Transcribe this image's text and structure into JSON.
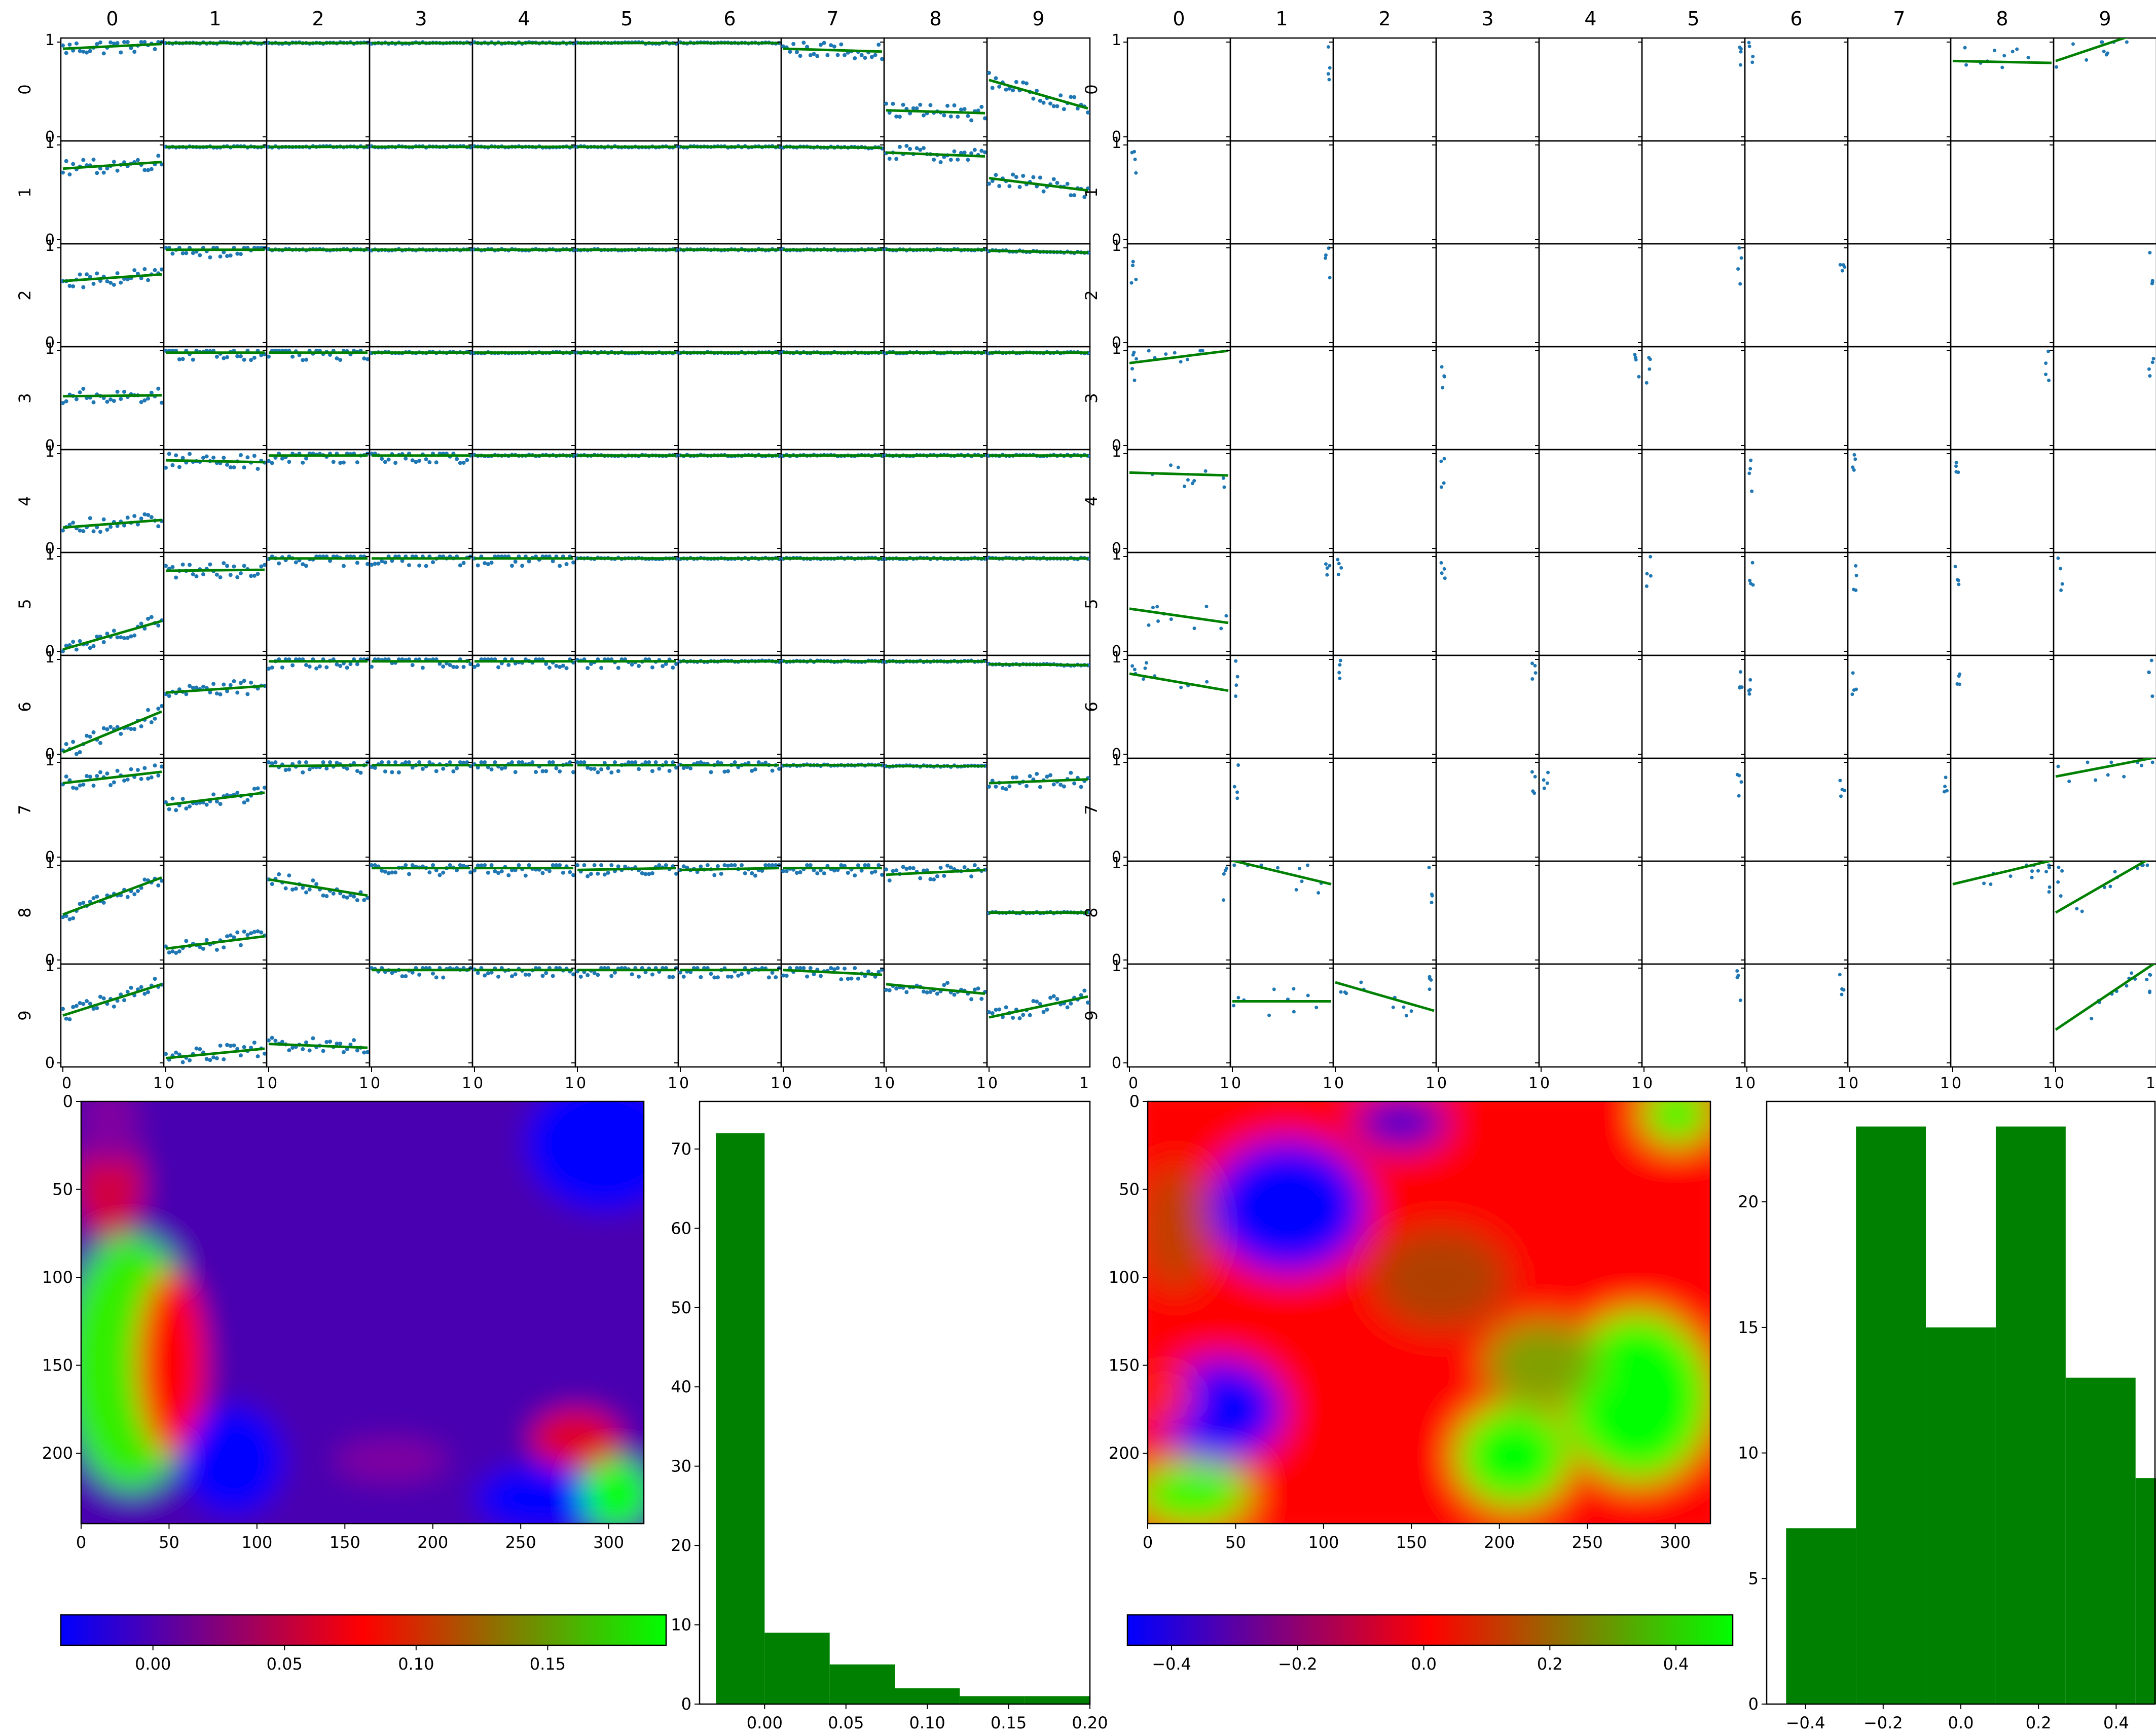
{
  "chart_data": [
    {
      "id": "left-grid",
      "type": "scatter-matrix",
      "description_rows": [
        "0",
        "1",
        "2",
        "3",
        "4",
        "5",
        "6",
        "7",
        "8",
        "9"
      ],
      "columns": [
        "0",
        "1",
        "2",
        "3",
        "4",
        "5",
        "6",
        "7",
        "8",
        "9"
      ],
      "rows": [
        "0",
        "1",
        "2",
        "3",
        "4",
        "5",
        "6",
        "7",
        "8",
        "9"
      ],
      "y_ticks": [
        "0",
        "1"
      ],
      "x_ticks": [
        "0",
        "1"
      ],
      "ylim": [
        0,
        1
      ],
      "xlim": [
        0,
        1
      ],
      "cells": [
        [
          [
            0.93,
            0.98
          ],
          [
            0.99,
            0.99
          ],
          [
            0.99,
            0.99
          ],
          [
            0.99,
            0.99
          ],
          [
            0.99,
            0.99
          ],
          [
            0.99,
            0.99
          ],
          [
            0.99,
            0.99
          ],
          [
            0.93,
            0.9
          ],
          [
            0.28,
            0.25
          ],
          [
            0.6,
            0.3
          ]
        ],
        [
          [
            0.75,
            0.82
          ],
          [
            0.98,
            0.98
          ],
          [
            0.98,
            0.98
          ],
          [
            0.98,
            0.98
          ],
          [
            0.98,
            0.98
          ],
          [
            0.98,
            0.98
          ],
          [
            0.98,
            0.98
          ],
          [
            0.98,
            0.97
          ],
          [
            0.92,
            0.88
          ],
          [
            0.65,
            0.52
          ]
        ],
        [
          [
            0.65,
            0.72
          ],
          [
            0.98,
            0.98
          ],
          [
            0.98,
            0.98
          ],
          [
            0.98,
            0.98
          ],
          [
            0.98,
            0.98
          ],
          [
            0.98,
            0.98
          ],
          [
            0.98,
            0.98
          ],
          [
            0.98,
            0.98
          ],
          [
            0.98,
            0.98
          ],
          [
            0.97,
            0.95
          ]
        ],
        [
          [
            0.52,
            0.53
          ],
          [
            0.98,
            0.98
          ],
          [
            0.98,
            0.98
          ],
          [
            0.98,
            0.98
          ],
          [
            0.98,
            0.98
          ],
          [
            0.98,
            0.98
          ],
          [
            0.98,
            0.98
          ],
          [
            0.98,
            0.98
          ],
          [
            0.98,
            0.98
          ],
          [
            0.98,
            0.98
          ]
        ],
        [
          [
            0.22,
            0.3
          ],
          [
            0.93,
            0.91
          ],
          [
            0.98,
            0.98
          ],
          [
            0.98,
            0.98
          ],
          [
            0.98,
            0.98
          ],
          [
            0.98,
            0.98
          ],
          [
            0.98,
            0.98
          ],
          [
            0.98,
            0.98
          ],
          [
            0.98,
            0.98
          ],
          [
            0.98,
            0.98
          ]
        ],
        [
          [
            0.02,
            0.32
          ],
          [
            0.85,
            0.86
          ],
          [
            0.98,
            0.98
          ],
          [
            0.98,
            0.98
          ],
          [
            0.98,
            0.98
          ],
          [
            0.98,
            0.98
          ],
          [
            0.98,
            0.98
          ],
          [
            0.98,
            0.98
          ],
          [
            0.98,
            0.98
          ],
          [
            0.98,
            0.98
          ]
        ],
        [
          [
            0.02,
            0.45
          ],
          [
            0.65,
            0.72
          ],
          [
            0.98,
            0.98
          ],
          [
            0.98,
            0.98
          ],
          [
            0.98,
            0.98
          ],
          [
            0.98,
            0.98
          ],
          [
            0.98,
            0.98
          ],
          [
            0.98,
            0.98
          ],
          [
            0.98,
            0.98
          ],
          [
            0.95,
            0.94
          ]
        ],
        [
          [
            0.78,
            0.9
          ],
          [
            0.55,
            0.68
          ],
          [
            0.96,
            0.97
          ],
          [
            0.97,
            0.97
          ],
          [
            0.97,
            0.97
          ],
          [
            0.97,
            0.97
          ],
          [
            0.97,
            0.97
          ],
          [
            0.97,
            0.97
          ],
          [
            0.96,
            0.96
          ],
          [
            0.78,
            0.82
          ]
        ],
        [
          [
            0.48,
            0.87
          ],
          [
            0.12,
            0.25
          ],
          [
            0.85,
            0.68
          ],
          [
            0.97,
            0.97
          ],
          [
            0.97,
            0.97
          ],
          [
            0.95,
            0.97
          ],
          [
            0.95,
            0.97
          ],
          [
            0.97,
            0.97
          ],
          [
            0.9,
            0.95
          ],
          [
            0.5,
            0.5
          ]
        ],
        [
          [
            0.5,
            0.83
          ],
          [
            0.05,
            0.15
          ],
          [
            0.2,
            0.16
          ],
          [
            0.98,
            0.98
          ],
          [
            0.98,
            0.98
          ],
          [
            0.98,
            0.98
          ],
          [
            0.98,
            0.98
          ],
          [
            0.98,
            0.93
          ],
          [
            0.83,
            0.73
          ],
          [
            0.48,
            0.7
          ]
        ]
      ]
    },
    {
      "id": "right-grid",
      "type": "scatter-matrix",
      "columns": [
        "0",
        "1",
        "2",
        "3",
        "4",
        "5",
        "6",
        "7",
        "8",
        "9"
      ],
      "rows": [
        "0",
        "1",
        "2",
        "3",
        "4",
        "5",
        "6",
        "7",
        "8",
        "9"
      ],
      "y_ticks": [
        "0",
        "1"
      ],
      "x_ticks": [
        "0",
        "1"
      ],
      "ylim": [
        0,
        1
      ],
      "xlim": [
        0,
        1
      ],
      "fit_lines": [
        {
          "row": 0,
          "col": 8,
          "y": [
            0.8,
            0.78
          ]
        },
        {
          "row": 0,
          "col": 9,
          "y": [
            0.8,
            1.15
          ]
        },
        {
          "row": 3,
          "col": 0,
          "y": [
            0.87,
            1.0
          ]
        },
        {
          "row": 4,
          "col": 0,
          "y": [
            0.8,
            0.77
          ]
        },
        {
          "row": 5,
          "col": 0,
          "y": [
            0.45,
            0.3
          ]
        },
        {
          "row": 6,
          "col": 0,
          "y": [
            0.85,
            0.67
          ]
        },
        {
          "row": 7,
          "col": 9,
          "y": [
            0.85,
            1.05
          ]
        },
        {
          "row": 8,
          "col": 1,
          "y": [
            1.05,
            0.8
          ]
        },
        {
          "row": 8,
          "col": 8,
          "y": [
            0.8,
            1.05
          ]
        },
        {
          "row": 8,
          "col": 9,
          "y": [
            0.5,
            1.1
          ]
        },
        {
          "row": 9,
          "col": 1,
          "y": [
            0.65,
            0.65
          ]
        },
        {
          "row": 9,
          "col": 2,
          "y": [
            0.85,
            0.55
          ]
        },
        {
          "row": 9,
          "col": 9,
          "y": [
            0.35,
            1.05
          ]
        }
      ]
    },
    {
      "id": "heatmap-left",
      "type": "heatmap",
      "x_ticks": [
        "0",
        "50",
        "100",
        "150",
        "200",
        "250",
        "300"
      ],
      "y_ticks": [
        "0",
        "50",
        "100",
        "150",
        "200"
      ],
      "xlim": [
        0,
        320
      ],
      "ylim": [
        240,
        0
      ],
      "colorbar": {
        "ticks": [
          "0.00",
          "0.05",
          "0.10",
          "0.15"
        ],
        "range": [
          -0.035,
          0.195
        ],
        "colors": [
          "#0000ff",
          "#ff0000",
          "#00ff00"
        ]
      }
    },
    {
      "id": "hist-left",
      "type": "bar",
      "bin_edges": [
        -0.03,
        0.0,
        0.04,
        0.08,
        0.12,
        0.16,
        0.2
      ],
      "values": [
        72,
        9,
        5,
        2,
        1,
        1
      ],
      "x_ticks": [
        "0.00",
        "0.05",
        "0.10",
        "0.15",
        "0.20"
      ],
      "y_ticks": [
        "0",
        "10",
        "20",
        "30",
        "40",
        "50",
        "60",
        "70"
      ],
      "ylim": [
        0,
        76
      ],
      "xlim": [
        -0.04,
        0.2
      ],
      "color": "#008000"
    },
    {
      "id": "heatmap-right",
      "type": "heatmap",
      "x_ticks": [
        "0",
        "50",
        "100",
        "150",
        "200",
        "250",
        "300"
      ],
      "y_ticks": [
        "0",
        "50",
        "100",
        "150",
        "200"
      ],
      "xlim": [
        0,
        320
      ],
      "ylim": [
        240,
        0
      ],
      "colorbar": {
        "ticks": [
          "−0.4",
          "−0.2",
          "0.0",
          "0.2",
          "0.4"
        ],
        "range": [
          -0.47,
          0.49
        ],
        "colors": [
          "#0000ff",
          "#ff0000",
          "#00ff00"
        ]
      }
    },
    {
      "id": "hist-right",
      "type": "bar",
      "bin_edges": [
        -0.45,
        -0.27,
        -0.09,
        0.09,
        0.27,
        0.45,
        0.63
      ],
      "values": [
        7,
        23,
        15,
        23,
        13,
        9
      ],
      "x_ticks": [
        "−0.4",
        "−0.2",
        "0.0",
        "0.2",
        "0.4"
      ],
      "y_ticks": [
        "0",
        "5",
        "10",
        "15",
        "20"
      ],
      "ylim": [
        0,
        24
      ],
      "xlim": [
        -0.5,
        0.5
      ],
      "color": "#008000"
    }
  ]
}
